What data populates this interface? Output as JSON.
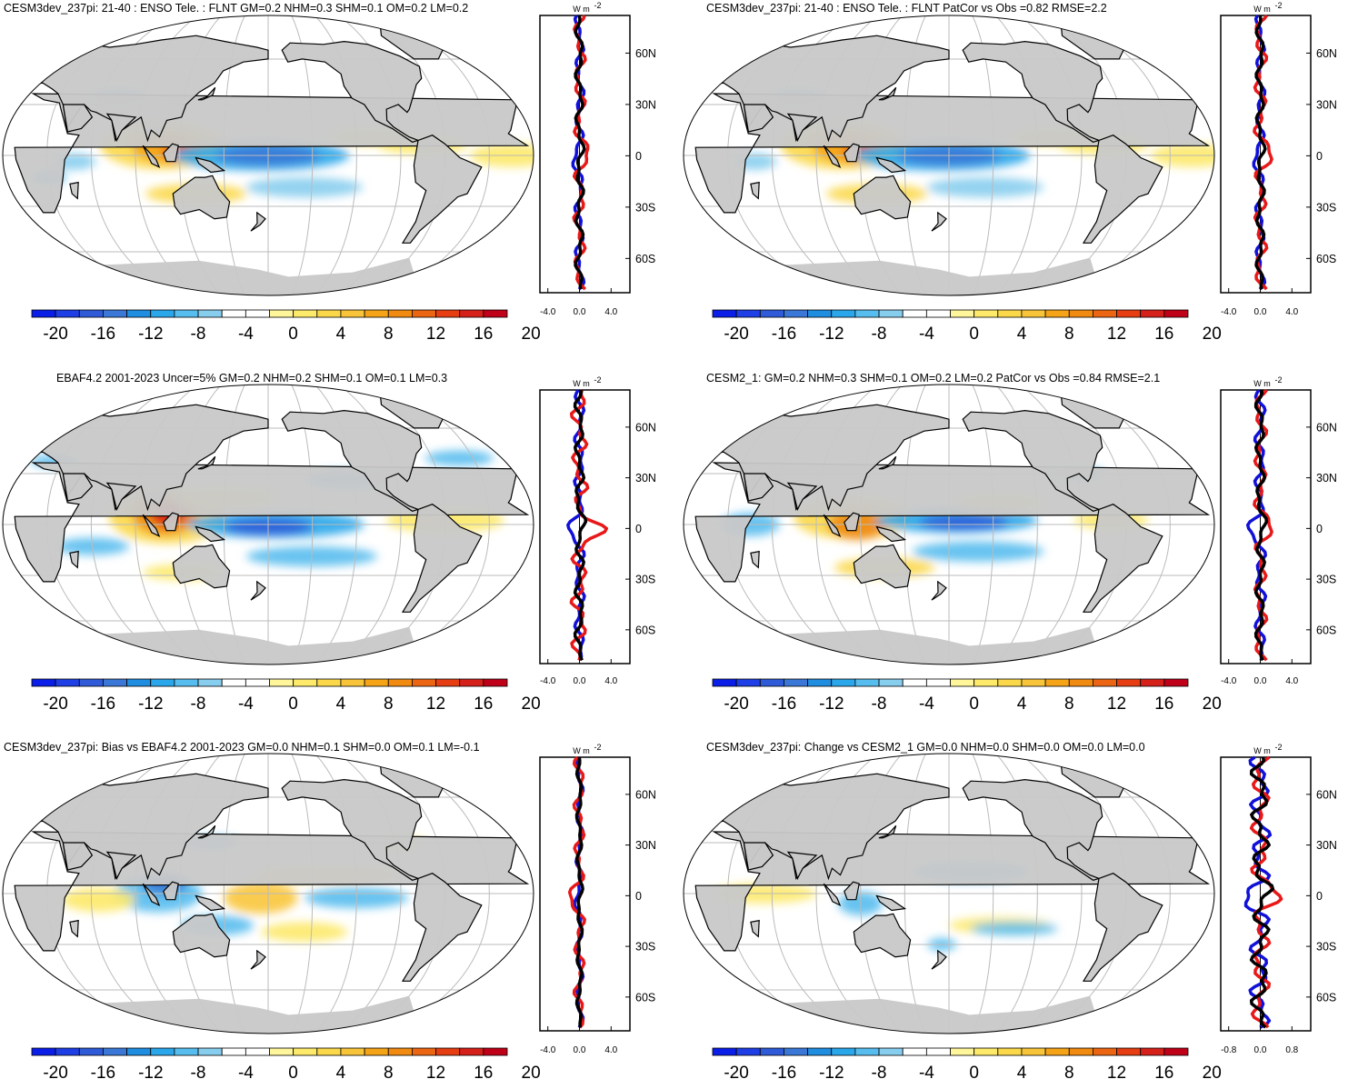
{
  "panels": [
    {
      "id": "p1",
      "title": "CESM3dev_237pi: 21-40 : ENSO Tele. : FLNT GM=0.2 NHM=0.3 SHM=0.1 OM=0.2 LM=0.2",
      "profile_x_ticks": [
        "-4.0",
        "0.0",
        "4.0"
      ]
    },
    {
      "id": "p2",
      "title": "CESM3dev_237pi: 21-40 : ENSO Tele. : FLNT PatCor vs Obs =0.82 RMSE=2.2",
      "profile_x_ticks": [
        "-4.0",
        "0.0",
        "4.0"
      ]
    },
    {
      "id": "p3",
      "title": "EBAF4.2 2001-2023 Uncer=5% GM=0.2 NHM=0.2 SHM=0.1 OM=0.1 LM=0.3",
      "profile_x_ticks": [
        "-4.0",
        "0.0",
        "4.0"
      ]
    },
    {
      "id": "p4",
      "title": "CESM2_1: GM=0.2 NHM=0.3 SHM=0.1 OM=0.2 LM=0.2 PatCor vs Obs =0.84 RMSE=2.1",
      "profile_x_ticks": [
        "-4.0",
        "0.0",
        "4.0"
      ]
    },
    {
      "id": "p5",
      "title": "CESM3dev_237pi: Bias vs EBAF4.2 2001-2023 GM=0.0 NHM=0.1 SHM=0.0 OM=0.1 LM=-0.1",
      "profile_x_ticks": [
        "-4.0",
        "0.0",
        "4.0"
      ]
    },
    {
      "id": "p6",
      "title": "CESM3dev_237pi: Change vs CESM2_1 GM=0.0 NHM=0.0 SHM=0.0 OM=0.0 LM=0.0",
      "profile_x_ticks": [
        "-0.8",
        "0.0",
        "0.8"
      ]
    }
  ],
  "profile_unit": "W m",
  "profile_unit_exp": "-2",
  "lat_labels": [
    "60N",
    "30N",
    "0",
    "30S",
    "60S"
  ],
  "colorbar_labels": [
    "-20",
    "-16",
    "-12",
    "-8",
    "-4",
    "0",
    "4",
    "8",
    "12",
    "16",
    "20"
  ],
  "colorbar_colors": [
    "#0a1ee8",
    "#1e3ee6",
    "#2f5bd8",
    "#3a77d6",
    "#1f8de0",
    "#2aa6ea",
    "#56bdee",
    "#87cdee",
    "#ffffff",
    "#ffffff",
    "#fff59a",
    "#fde96a",
    "#fbd84a",
    "#f8c53a",
    "#f5a418",
    "#f08a10",
    "#ec6512",
    "#e63e12",
    "#d6201a",
    "#c00018"
  ],
  "colors": {
    "land": "#c8c8c8",
    "ocean": "#ffffff",
    "grid": "#bbbbbb",
    "series_blue": "#1010d8",
    "series_red": "#e81818",
    "series_black": "#000000"
  }
}
